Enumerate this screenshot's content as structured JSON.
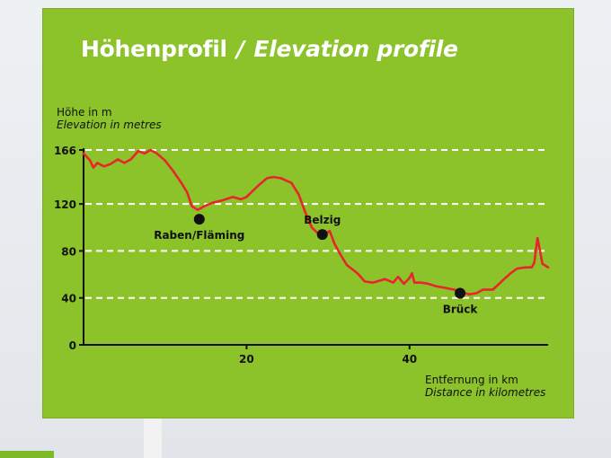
{
  "sign": {
    "title_de": "Höhenprofil",
    "title_sep": "/",
    "title_en": "Elevation profile",
    "accent_color": "#8cc32a",
    "line_color": "#e8242c"
  },
  "chart_data": {
    "type": "line",
    "title": "Höhenprofil / Elevation profile",
    "ylabel_de": "Höhe in m",
    "ylabel_en": "Elevation in metres",
    "xlabel_de": "Entfernung in km",
    "xlabel_en": "Distance in kilometres",
    "yticks": [
      0,
      40,
      80,
      120,
      166
    ],
    "xticks": [
      20,
      40
    ],
    "ylim": [
      0,
      166
    ],
    "xlim": [
      0,
      57
    ],
    "grid": "horizontal dashed",
    "x": [
      0,
      0.8,
      1.2,
      1.7,
      2.5,
      3.3,
      4.2,
      5.0,
      5.8,
      6.7,
      7.5,
      8.2,
      9.0,
      10.0,
      11.0,
      12.0,
      12.7,
      13.3,
      14.0,
      14.8,
      15.8,
      17.0,
      18.3,
      19.3,
      20.0,
      20.6,
      21.5,
      22.5,
      23.3,
      24.2,
      25.5,
      26.4,
      27.2,
      28.0,
      28.6,
      29.2,
      30.2,
      30.8,
      31.6,
      32.3,
      33.6,
      34.5,
      35.5,
      37.0,
      38.0,
      38.6,
      39.3,
      40.0,
      40.3,
      40.6,
      41.4,
      42.3,
      43.2,
      44.0,
      45.5,
      46.4,
      47.3,
      48.2,
      49.0,
      50.2,
      51.0,
      51.6,
      52.4,
      53.2,
      54.3,
      55.0,
      55.3,
      55.7,
      56.3,
      57.0
    ],
    "y": [
      163,
      157,
      151,
      155,
      152,
      154,
      158,
      155,
      158,
      165,
      163,
      166,
      163,
      157,
      148,
      138,
      130,
      118,
      115,
      118,
      121,
      123,
      126,
      124,
      126,
      130,
      136,
      142,
      143,
      142,
      138,
      128,
      113,
      100,
      96,
      92,
      97,
      86,
      76,
      68,
      61,
      54,
      53,
      56,
      53,
      58,
      52,
      57,
      61,
      53,
      53,
      52,
      50,
      49,
      47,
      45,
      43,
      44,
      47,
      47,
      52,
      56,
      61,
      65,
      66,
      66,
      70,
      91,
      69,
      66
    ],
    "annotations": [
      {
        "label": "Raben/Fläming",
        "x": 14.2,
        "y": 107,
        "label_pos": "below"
      },
      {
        "label": "Belzig",
        "x": 29.3,
        "y": 94,
        "label_pos": "above"
      },
      {
        "label": "Brück",
        "x": 46.2,
        "y": 44,
        "label_pos": "below"
      }
    ]
  }
}
